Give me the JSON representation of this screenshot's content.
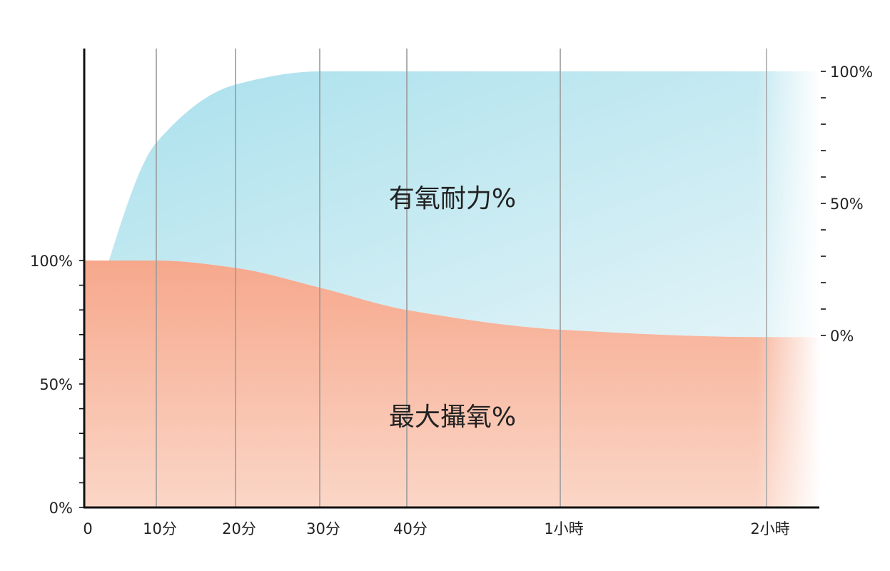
{
  "chart_data": {
    "type": "area",
    "title": "",
    "categories": [
      "0",
      "10分",
      "20分",
      "30分",
      "40分",
      "1小時",
      "2小時"
    ],
    "left_axis": {
      "ticks": [
        "0%",
        "50%",
        "100%"
      ],
      "range": [
        0,
        100
      ]
    },
    "right_axis": {
      "ticks": [
        "0%",
        "50%",
        "100%"
      ],
      "range": [
        0,
        100
      ]
    },
    "grid": true,
    "series": [
      {
        "name": "最大攝氧%",
        "axis": "left",
        "color": "#f6ad93",
        "points": [
          {
            "x": "0",
            "y": 100
          },
          {
            "x": "10分",
            "y": 100
          },
          {
            "x": "20分",
            "y": 97
          },
          {
            "x": "30分",
            "y": 89
          },
          {
            "x": "40分",
            "y": 80
          },
          {
            "x": "1小時",
            "y": 72
          },
          {
            "x": "2小時",
            "y": 69
          }
        ]
      },
      {
        "name": "有氧耐力%",
        "axis": "right",
        "color": "#b2e4ef",
        "points": [
          {
            "x": "0",
            "y": 0
          },
          {
            "x": "10分",
            "y": 73
          },
          {
            "x": "20分",
            "y": 95
          },
          {
            "x": "30分",
            "y": 100
          },
          {
            "x": "40分",
            "y": 100
          },
          {
            "x": "1小時",
            "y": 100
          },
          {
            "x": "2小時",
            "y": 100
          }
        ]
      }
    ]
  }
}
